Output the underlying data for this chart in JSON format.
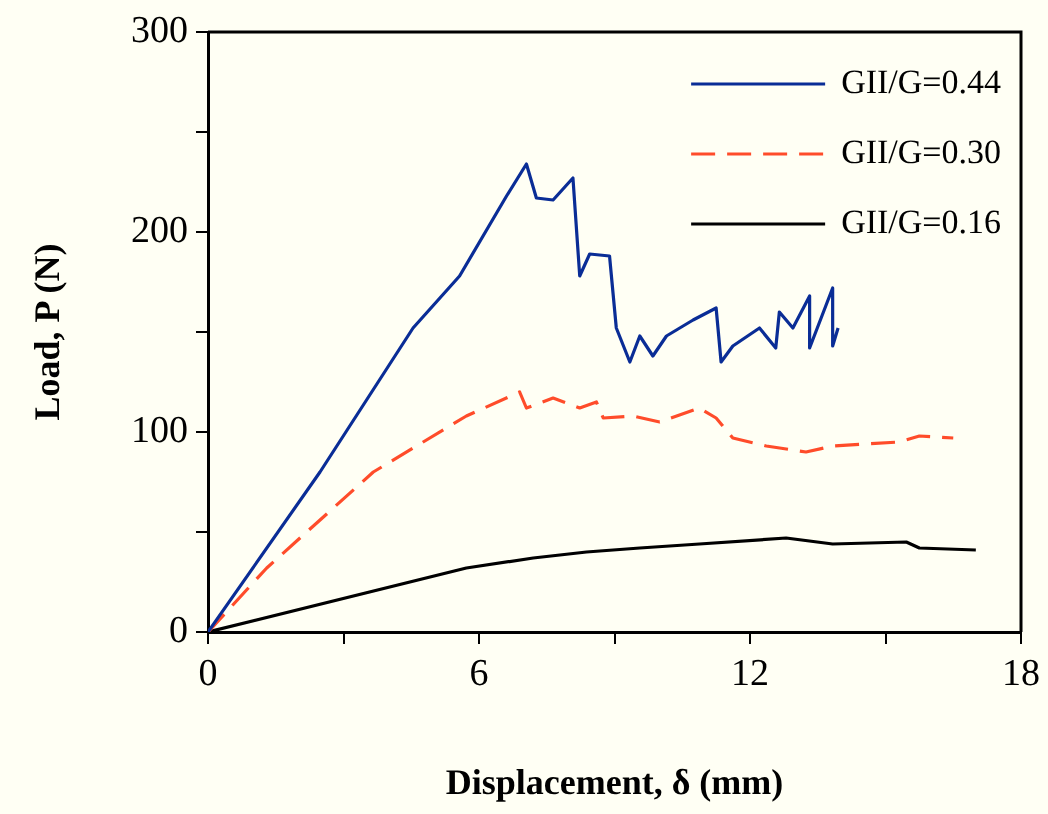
{
  "chart_data": {
    "type": "line",
    "xlabel": "Displacement, δ (mm)",
    "ylabel": "Load, P (N)",
    "xlim": [
      0,
      18
    ],
    "xticks": [
      0,
      {
        "value": 3,
        "label": null
      },
      6,
      {
        "value": 9,
        "label": null
      },
      12,
      {
        "value": 15,
        "label": null
      },
      18
    ],
    "ylim": [
      0,
      300
    ],
    "yticks": [
      0,
      {
        "value": 50,
        "label": null
      },
      100,
      {
        "value": 150,
        "label": null
      },
      200,
      {
        "value": 250,
        "label": null
      },
      300
    ],
    "grid": false,
    "legend": "top right",
    "marker": "none",
    "series": [
      {
        "name": "GII/G=0.44",
        "color": "#0a2d96",
        "line_style": "solid",
        "x": [
          0,
          2.48,
          4.54,
          5.57,
          6.61,
          7.05,
          7.27,
          7.64,
          8.08,
          8.23,
          8.45,
          8.89,
          9.04,
          9.34,
          9.56,
          9.85,
          10.15,
          10.74,
          11.25,
          11.36,
          11.62,
          12.21,
          12.57,
          12.65,
          12.95,
          13.32,
          13.32,
          13.83,
          13.83,
          13.95
        ],
        "values": [
          0,
          80,
          152,
          178,
          218,
          234,
          217,
          216,
          227,
          178,
          189,
          188,
          152,
          135,
          148,
          138,
          148,
          156,
          162,
          135,
          143,
          152,
          142,
          160,
          152,
          168,
          142,
          172,
          143,
          152
        ]
      },
      {
        "name": "GII/G=0.30",
        "color": "#ff4c2a",
        "line_style": "dashed",
        "x": [
          0,
          1.3,
          3.66,
          5.72,
          6.9,
          7.05,
          7.64,
          8.23,
          8.6,
          8.75,
          9.41,
          10.0,
          10.88,
          11.25,
          11.62,
          12.36,
          13.24,
          13.83,
          15.3,
          15.75,
          16.5
        ],
        "values": [
          0,
          32,
          80,
          108,
          120,
          112,
          117,
          112,
          115,
          107,
          108,
          105,
          112,
          107,
          97,
          93,
          90,
          93,
          95,
          98,
          97
        ]
      },
      {
        "name": "GII/G=0.16",
        "color": "#000000",
        "line_style": "solid",
        "x": [
          0,
          5.72,
          7.2,
          8.38,
          9.56,
          10.88,
          12.8,
          13.83,
          15.46,
          15.75,
          17.0
        ],
        "values": [
          0,
          32,
          37,
          40,
          42,
          44,
          47,
          44,
          45,
          42,
          41
        ]
      }
    ]
  }
}
